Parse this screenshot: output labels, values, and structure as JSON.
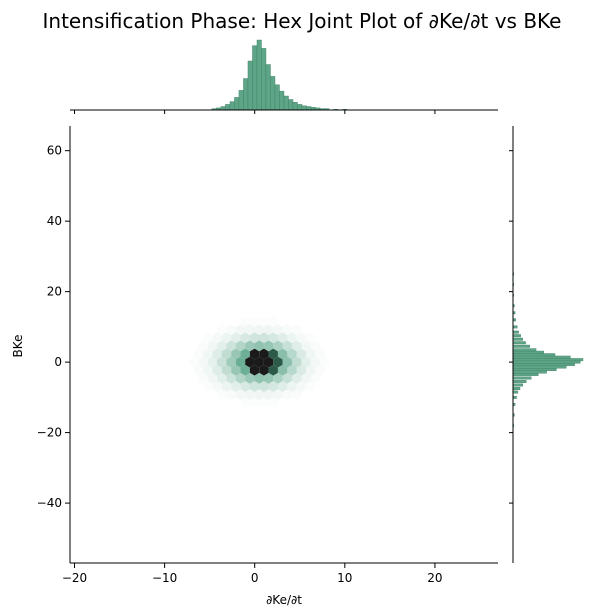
{
  "chart_data": {
    "type": "hexbin-joint",
    "title": "Intensification Phase: Hex Joint Plot of ∂Ke/∂t vs BKe",
    "xlabel": "∂Ke/∂t",
    "ylabel": "BKe",
    "xlim": [
      -20.5,
      27
    ],
    "ylim": [
      -57,
      67
    ],
    "x_ticks": [
      -20,
      -10,
      0,
      10,
      20
    ],
    "x_tick_labels": [
      "−20",
      "−10",
      "0",
      "10",
      "20"
    ],
    "y_ticks": [
      -40,
      -20,
      0,
      20,
      40,
      60
    ],
    "y_tick_labels": [
      "−40",
      "−20",
      "0",
      "20",
      "40",
      "60"
    ],
    "colors": {
      "hex_base": "#4a9c7e",
      "hist": "#5ea587",
      "dark": "#1a1a1a"
    },
    "center": {
      "x": 0.5,
      "y": 0.0
    },
    "spread": {
      "x_sd": 2.6,
      "y_sd": 3.6
    },
    "marginal_x": {
      "bin_width": 0.5,
      "bins": [
        {
          "x": -4.5,
          "count": 2
        },
        {
          "x": -4.0,
          "count": 3
        },
        {
          "x": -3.5,
          "count": 5
        },
        {
          "x": -3.0,
          "count": 8
        },
        {
          "x": -2.5,
          "count": 12
        },
        {
          "x": -2.0,
          "count": 18
        },
        {
          "x": -1.5,
          "count": 28
        },
        {
          "x": -1.0,
          "count": 45
        },
        {
          "x": -0.5,
          "count": 70
        },
        {
          "x": 0.0,
          "count": 92
        },
        {
          "x": 0.5,
          "count": 100
        },
        {
          "x": 1.0,
          "count": 88
        },
        {
          "x": 1.5,
          "count": 65
        },
        {
          "x": 2.0,
          "count": 48
        },
        {
          "x": 2.5,
          "count": 36
        },
        {
          "x": 3.0,
          "count": 27
        },
        {
          "x": 3.5,
          "count": 20
        },
        {
          "x": 4.0,
          "count": 15
        },
        {
          "x": 4.5,
          "count": 11
        },
        {
          "x": 5.0,
          "count": 8
        },
        {
          "x": 5.5,
          "count": 6
        },
        {
          "x": 6.0,
          "count": 5
        },
        {
          "x": 6.5,
          "count": 4
        },
        {
          "x": 7.0,
          "count": 3
        },
        {
          "x": 7.5,
          "count": 2
        },
        {
          "x": 8.0,
          "count": 2
        },
        {
          "x": 9.0,
          "count": 1
        },
        {
          "x": 10.0,
          "count": 1
        }
      ]
    },
    "marginal_y": {
      "bin_width": 0.7,
      "bins": [
        {
          "y": -18.0,
          "count": 1
        },
        {
          "y": -15.0,
          "count": 2
        },
        {
          "y": -12.0,
          "count": 3
        },
        {
          "y": -10.0,
          "count": 5
        },
        {
          "y": -8.5,
          "count": 7
        },
        {
          "y": -7.5,
          "count": 10
        },
        {
          "y": -6.5,
          "count": 14
        },
        {
          "y": -5.5,
          "count": 19
        },
        {
          "y": -4.5,
          "count": 26
        },
        {
          "y": -3.5,
          "count": 36
        },
        {
          "y": -2.8,
          "count": 48
        },
        {
          "y": -2.1,
          "count": 62
        },
        {
          "y": -1.4,
          "count": 76
        },
        {
          "y": -0.7,
          "count": 88
        },
        {
          "y": 0.0,
          "count": 96
        },
        {
          "y": 0.7,
          "count": 100
        },
        {
          "y": 1.4,
          "count": 82
        },
        {
          "y": 2.1,
          "count": 60
        },
        {
          "y": 2.8,
          "count": 44
        },
        {
          "y": 3.5,
          "count": 33
        },
        {
          "y": 4.5,
          "count": 24
        },
        {
          "y": 5.5,
          "count": 18
        },
        {
          "y": 6.5,
          "count": 14
        },
        {
          "y": 7.5,
          "count": 11
        },
        {
          "y": 8.5,
          "count": 8
        },
        {
          "y": 10.0,
          "count": 6
        },
        {
          "y": 12.0,
          "count": 4
        },
        {
          "y": 14.0,
          "count": 3
        },
        {
          "y": 16.0,
          "count": 2
        },
        {
          "y": 19.0,
          "count": 1
        },
        {
          "y": 22.0,
          "count": 1
        },
        {
          "y": 25.0,
          "count": 1
        }
      ]
    }
  }
}
